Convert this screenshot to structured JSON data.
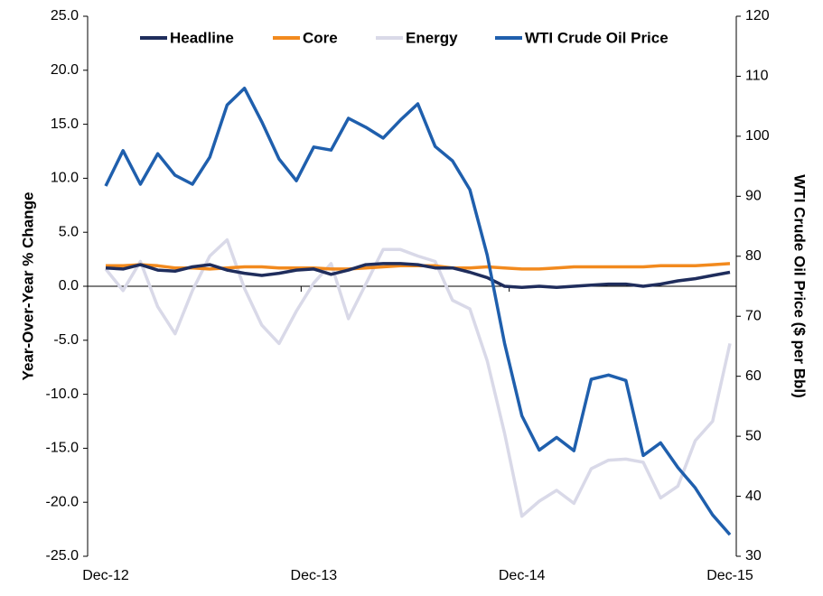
{
  "chart_data": {
    "type": "line",
    "categories": [
      "Dec-12",
      null,
      null,
      null,
      null,
      null,
      null,
      null,
      null,
      null,
      null,
      null,
      "Dec-13",
      null,
      null,
      null,
      null,
      null,
      null,
      null,
      null,
      null,
      null,
      null,
      "Dec-14",
      null,
      null,
      null,
      null,
      null,
      null,
      null,
      null,
      null,
      null,
      null,
      "Dec-15"
    ],
    "series": [
      {
        "name": "Headline",
        "color": "#1f2d5c",
        "values": [
          1.7,
          1.6,
          2.0,
          1.5,
          1.4,
          1.8,
          2.0,
          1.5,
          1.2,
          1.0,
          1.2,
          1.5,
          1.6,
          1.1,
          1.5,
          2.0,
          2.1,
          2.1,
          2.0,
          1.7,
          1.7,
          1.3,
          0.8,
          0.0,
          -0.1,
          0.0,
          -0.1,
          0.0,
          0.1,
          0.2,
          0.2,
          0.0,
          0.2,
          0.5,
          0.7,
          1.0,
          1.3
        ]
      },
      {
        "name": "Core",
        "color": "#f28a1e",
        "values": [
          1.9,
          1.9,
          2.0,
          1.9,
          1.7,
          1.7,
          1.6,
          1.7,
          1.8,
          1.8,
          1.7,
          1.7,
          1.7,
          1.6,
          1.6,
          1.7,
          1.8,
          1.9,
          1.9,
          1.9,
          1.7,
          1.7,
          1.8,
          1.7,
          1.6,
          1.6,
          1.7,
          1.8,
          1.8,
          1.8,
          1.8,
          1.8,
          1.9,
          1.9,
          1.9,
          2.0,
          2.1
        ]
      },
      {
        "name": "Energy",
        "color": "#d9d9e8",
        "values": [
          1.6,
          -0.4,
          2.3,
          -1.9,
          -4.4,
          -0.4,
          2.8,
          4.3,
          -0.2,
          -3.6,
          -5.3,
          -2.3,
          0.3,
          2.1,
          -3.0,
          0.2,
          3.4,
          3.4,
          2.8,
          2.3,
          -1.3,
          -2.1,
          -6.9,
          -13.6,
          -21.3,
          -19.9,
          -18.9,
          -20.1,
          -16.9,
          -16.1,
          -16.0,
          -16.3,
          -19.6,
          -18.5,
          -14.3,
          -12.5,
          -5.3
        ]
      },
      {
        "name": "WTI Crude Oil Price",
        "color": "#1f5fad",
        "axis": "y2",
        "values": [
          91.7,
          97.6,
          92.0,
          97.1,
          93.5,
          92.0,
          96.5,
          105.2,
          108.0,
          102.4,
          96.2,
          92.6,
          98.2,
          97.7,
          103.0,
          101.5,
          99.7,
          102.7,
          105.4,
          98.3,
          95.9,
          91.1,
          80.2,
          65.5,
          53.4,
          47.7,
          49.8,
          47.6,
          59.5,
          60.2,
          59.3,
          46.8,
          48.9,
          44.8,
          41.4,
          36.9,
          33.6
        ]
      }
    ],
    "y_label": "Year-Over-Year % Change",
    "y2_label": "WTI Crude Oil Price ($ per Bbl)",
    "ylim": [
      -25,
      25
    ],
    "yticks": [
      {
        "value": -25,
        "label": "-25.0"
      },
      {
        "value": -20,
        "label": "-20.0"
      },
      {
        "value": -15,
        "label": "-15.0"
      },
      {
        "value": -10,
        "label": "-10.0"
      },
      {
        "value": -5,
        "label": "-5.0"
      },
      {
        "value": 0,
        "label": "0.0"
      },
      {
        "value": 5,
        "label": "5.0"
      },
      {
        "value": 10,
        "label": "10.0"
      },
      {
        "value": 15,
        "label": "15.0"
      },
      {
        "value": 20,
        "label": "20.0"
      },
      {
        "value": 25,
        "label": "25.0"
      }
    ],
    "y2lim": [
      30,
      120
    ],
    "y2ticks": [
      30,
      40,
      50,
      60,
      70,
      80,
      90,
      100,
      110,
      120
    ],
    "legend": "top"
  }
}
